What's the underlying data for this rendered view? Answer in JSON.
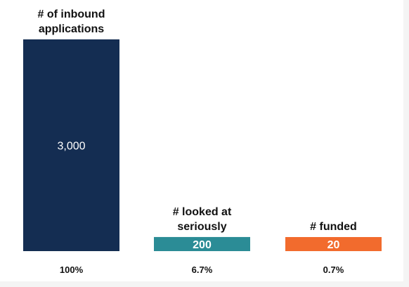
{
  "chart_data": {
    "type": "bar",
    "categories": [
      "# of inbound applications",
      "# looked at seriously",
      "# funded"
    ],
    "category_lines": [
      [
        "# of inbound",
        "applications"
      ],
      [
        "# looked at",
        "seriously"
      ],
      [
        "# funded"
      ]
    ],
    "values": [
      3000,
      200,
      20
    ],
    "value_labels": [
      "3,000",
      "200",
      "20"
    ],
    "percent_labels": [
      "100%",
      "6.7%",
      "0.7%"
    ],
    "colors": [
      "#142d52",
      "#2b8c96",
      "#f26b2d"
    ],
    "ylim": [
      0,
      3000
    ],
    "grid": false,
    "legend": "none"
  }
}
